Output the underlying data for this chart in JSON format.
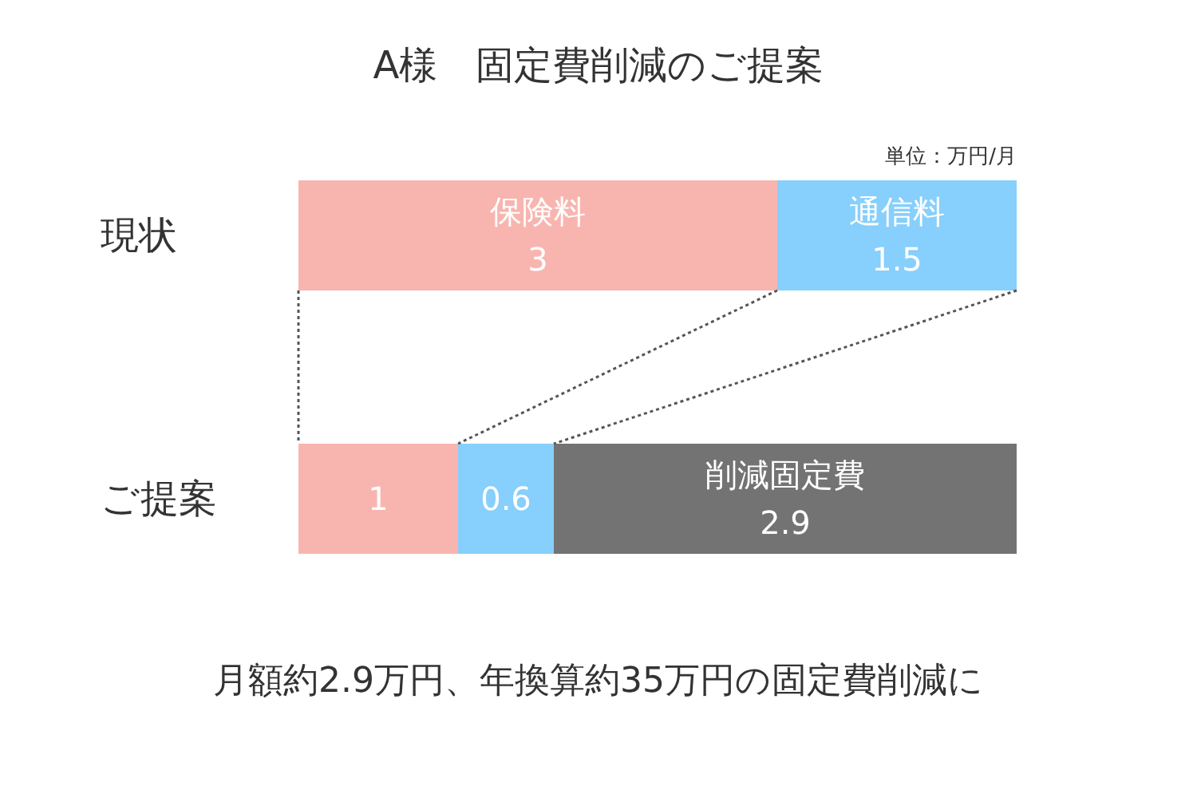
{
  "chart_data": {
    "type": "bar",
    "orientation": "horizontal",
    "stacked": true,
    "title": "A様　固定費削減のご提案",
    "categories": [
      "現状",
      "ご提案"
    ],
    "series": [
      {
        "color": "#f8b5af",
        "values": [
          3,
          1
        ],
        "value_labels": [
          "保険料\n3",
          "1"
        ]
      },
      {
        "color": "#87cffc",
        "values": [
          1.5,
          0.6
        ],
        "value_labels": [
          "通信料\n1.5",
          "0.6"
        ]
      },
      {
        "color": "#737373",
        "values": [
          null,
          2.9
        ],
        "value_labels": [
          null,
          "削減固定費\n2.9"
        ]
      }
    ],
    "annotations": [
      "単位：万円/月",
      "月額約2.9万円、年換算約35万円の固定費削減に"
    ]
  }
}
